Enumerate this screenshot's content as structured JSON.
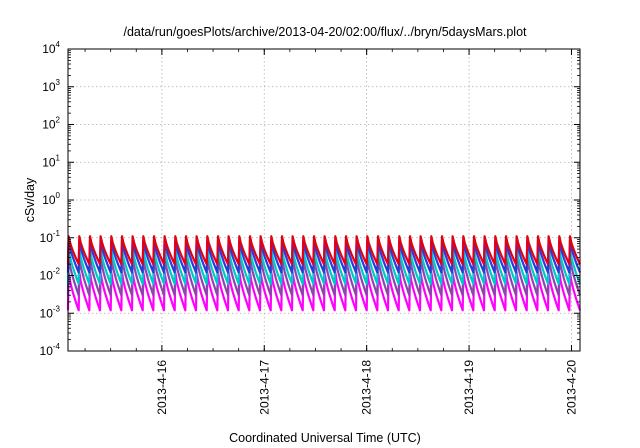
{
  "chart_data": {
    "type": "line",
    "title": "/data/run/goesPlots/archive/2013-04-20/02:00/flux/../bryn/5daysMars.plot",
    "xlabel": "Coordinated Universal Time (UTC)",
    "ylabel": "cSv/day",
    "yscale": "log",
    "ylim": [
      0.0001,
      10000
    ],
    "y_ticks": [
      {
        "base": "10",
        "exp": "-4",
        "value": 0.0001
      },
      {
        "base": "10",
        "exp": "-3",
        "value": 0.001
      },
      {
        "base": "10",
        "exp": "-2",
        "value": 0.01
      },
      {
        "base": "10",
        "exp": "-1",
        "value": 0.1
      },
      {
        "base": "10",
        "exp": "0",
        "value": 1
      },
      {
        "base": "10",
        "exp": "1",
        "value": 10
      },
      {
        "base": "10",
        "exp": "2",
        "value": 100
      },
      {
        "base": "10",
        "exp": "3",
        "value": 1000
      },
      {
        "base": "10",
        "exp": "4",
        "value": 10000
      }
    ],
    "xlim": [
      "2013-04-15 02:00",
      "2013-04-20 02:00"
    ],
    "x_ticks": [
      "2013-4-16",
      "2013-4-17",
      "2013-4-18",
      "2013-4-19",
      "2013-4-20"
    ],
    "grid": true,
    "pattern": "sawtooth",
    "cycles": 48,
    "series": [
      {
        "color": "#e0001a",
        "peak": 0.11,
        "trough": 0.02
      },
      {
        "color": "#2c3bd6",
        "peak": 0.085,
        "trough": 0.012
      },
      {
        "color": "#00c8c8",
        "peak": 0.05,
        "trough": 0.006
      },
      {
        "color": "#8e44ad",
        "peak": 0.03,
        "trough": 0.003
      },
      {
        "color": "#ff00ff",
        "peak": 0.012,
        "trough": 0.0012
      }
    ]
  }
}
